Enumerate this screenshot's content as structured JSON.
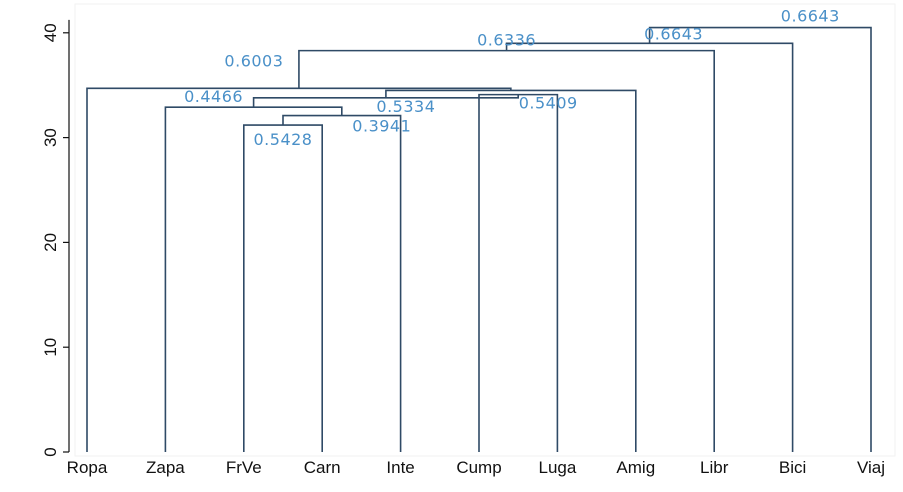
{
  "chart_data": {
    "type": "dendrogram",
    "title": "",
    "xlabel": "",
    "ylabel": "",
    "ylim": [
      0,
      42
    ],
    "y_ticks": [
      0,
      10,
      20,
      30,
      40
    ],
    "y_tick_labels": [
      "0",
      "10",
      "20",
      "30",
      "40"
    ],
    "grid": false,
    "legend": "none",
    "leaves": [
      "Ropa",
      "Zapa",
      "FrVe",
      "Carn",
      "Inte",
      "Cump",
      "Luga",
      "Amig",
      "Libr",
      "Bici",
      "Viaj"
    ],
    "merges": [
      {
        "id": "m1",
        "left": "FrVe",
        "right": "Carn",
        "height": 31.2,
        "label": "0.5428"
      },
      {
        "id": "m2",
        "left": "m1",
        "right": "Inte",
        "height": 32.1,
        "label": "0.3941"
      },
      {
        "id": "m3",
        "left": "Zapa",
        "right": "m2",
        "height": 32.9,
        "label": "0.4466"
      },
      {
        "id": "m4",
        "left": "Cump",
        "right": "Luga",
        "height": 34.1,
        "label": "0.5409"
      },
      {
        "id": "m5",
        "left": "m3",
        "right": "m4",
        "height": 33.8,
        "label": "0.5334"
      },
      {
        "id": "m6",
        "left": "m5",
        "right": "Amig",
        "height": 34.5,
        "label": ""
      },
      {
        "id": "m7",
        "left": "Ropa",
        "right": "m6",
        "height": 34.7,
        "label": "0.6003"
      },
      {
        "id": "m8",
        "left": "m7",
        "right": "Libr",
        "height": 38.3,
        "label": "0.6336"
      },
      {
        "id": "m9",
        "left": "m8",
        "right": "Bici",
        "height": 39.0,
        "label": "0.6643"
      },
      {
        "id": "m10",
        "left": "m9",
        "right": "Viaj",
        "height": 40.5,
        "label": "0.6643"
      }
    ],
    "colors": {
      "branch": "#2f4a66",
      "node_label": "#4a90c8",
      "axis": "#111111"
    }
  }
}
